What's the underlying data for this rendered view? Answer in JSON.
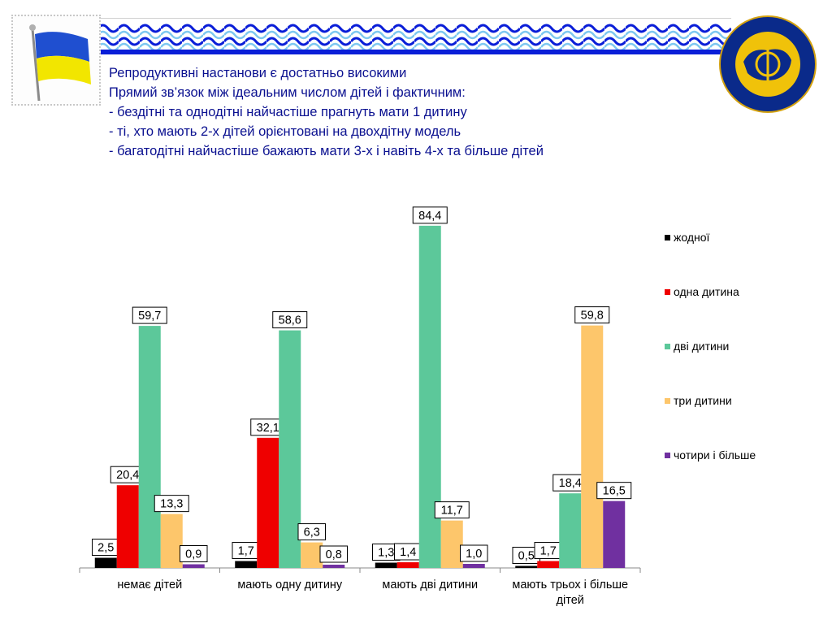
{
  "intro": {
    "lines": [
      "Репродуктивні настанови є достатньо високими",
      "Прямий зв’язок між ідеальним числом дітей і фактичним:",
      "- бездітні та однодітні найчастіше прагнуть мати 1 дитину",
      "- ті, хто мають 2-х дітей орієнтовані на двохдітну модель",
      "- багатодітні найчастіше бажають мати 3-х і навіть 4-х та більше дітей"
    ]
  },
  "branding": {
    "flag_colors": {
      "blue": "#1f4fd0",
      "yellow": "#f2e600"
    },
    "wave_colors": {
      "blue": "#0a1ed8",
      "light": "#7ec8f0"
    },
    "emblem_color": "#0a2a8a"
  },
  "chart_data": {
    "type": "bar",
    "categories": [
      [
        "немає дітей"
      ],
      [
        "мають одну дитину"
      ],
      [
        "мають дві дитини"
      ],
      [
        "мають трьох і більше",
        "дітей"
      ]
    ],
    "series": [
      {
        "name": "жодної",
        "color": "#000000",
        "values": [
          2.5,
          1.7,
          1.3,
          0.5
        ],
        "labels": [
          "2,5",
          "1,7",
          "1,3",
          "0,5"
        ]
      },
      {
        "name": "одна дитина",
        "color": "#ef0000",
        "values": [
          20.4,
          32.1,
          1.4,
          1.7
        ],
        "labels": [
          "20,4",
          "32,1",
          "1,4",
          "1,7"
        ]
      },
      {
        "name": "дві дитини",
        "color": "#5cc89a",
        "values": [
          59.7,
          58.6,
          84.4,
          18.4
        ],
        "labels": [
          "59,7",
          "58,6",
          "84,4",
          "18,4"
        ]
      },
      {
        "name": "три дитини",
        "color": "#fdc66b",
        "values": [
          13.3,
          6.3,
          11.7,
          59.8
        ],
        "labels": [
          "13,3",
          "6,3",
          "11,7",
          "59,8"
        ]
      },
      {
        "name": "чотири і більше",
        "color": "#7030a0",
        "values": [
          0.9,
          0.8,
          1.0,
          16.5
        ],
        "labels": [
          "0,9",
          "0,8",
          "1,0",
          "16,5"
        ]
      }
    ],
    "ylim": [
      0,
      100
    ],
    "grid": false,
    "legend_position": "right"
  }
}
